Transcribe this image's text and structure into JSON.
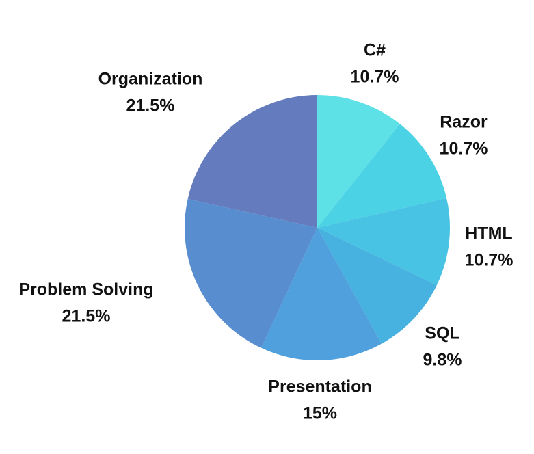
{
  "chart_data": {
    "type": "pie",
    "start": "12 o'clock",
    "direction": "clockwise",
    "slices": [
      {
        "label": "C#",
        "value": 10.7,
        "value_text": "10.7%",
        "color": "#5DE0E6"
      },
      {
        "label": "Razor",
        "value": 10.7,
        "value_text": "10.7%",
        "color": "#4CD2E5"
      },
      {
        "label": "HTML",
        "value": 10.7,
        "value_text": "10.7%",
        "color": "#48C3E3"
      },
      {
        "label": "SQL",
        "value": 9.8,
        "value_text": "9.8%",
        "color": "#47B1E0"
      },
      {
        "label": "Presentation",
        "value": 15,
        "value_text": "15%",
        "color": "#4FA0DC"
      },
      {
        "label": "Problem Solving",
        "value": 21.5,
        "value_text": "21.5%",
        "color": "#588ECF"
      },
      {
        "label": "Organization",
        "value": 21.5,
        "value_text": "21.5%",
        "color": "#647CBE"
      }
    ]
  }
}
